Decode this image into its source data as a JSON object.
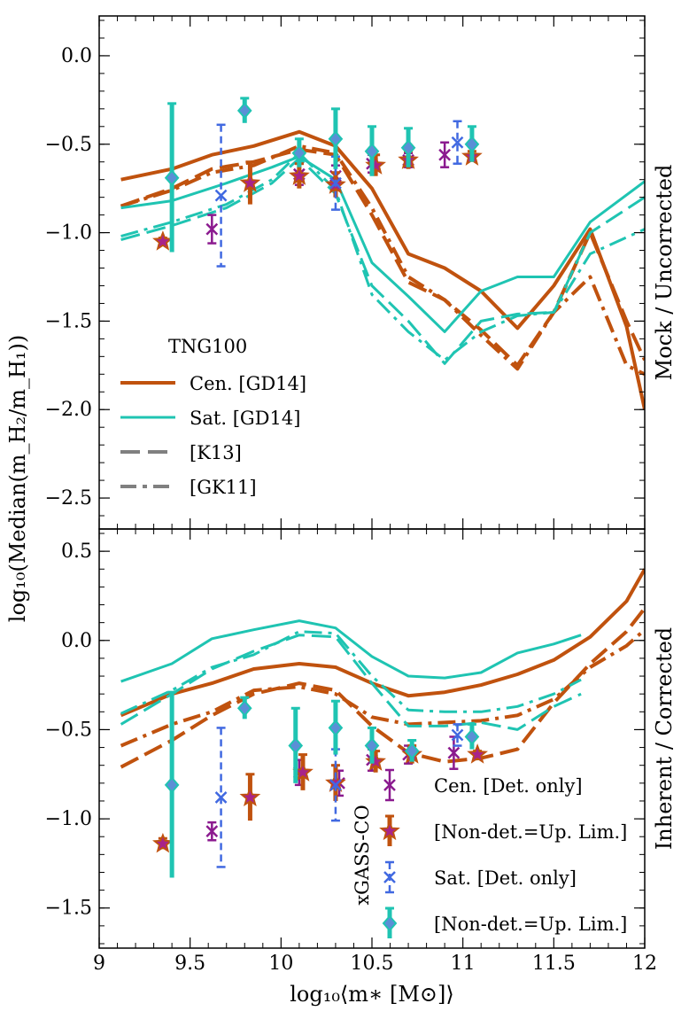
{
  "colors": {
    "cen": "#c0520e",
    "sat": "#1fc4b2",
    "obs_cen": "#8b1a8f",
    "obs_sat": "#4169e1",
    "obs_star_fill": "#a8238a",
    "legend_grey": "#808080"
  },
  "chart_data": {
    "type": "line",
    "x_label": "log₁₀⟨m∗ [M⊙]⟩",
    "y_label": "log₁₀(Median(m_H₂/m_H₁))",
    "xlim": [
      9,
      12
    ],
    "x_ticks": [
      "9",
      "9.5",
      "10",
      "10.5",
      "11",
      "11.5",
      "12"
    ],
    "panels": [
      {
        "label": "Mock / Uncorrected",
        "ylim": [
          -2.65,
          0.2
        ],
        "y_ticks": [
          "0.0",
          "−0.5",
          "−1.0",
          "−1.5",
          "−2.0",
          "−2.5"
        ],
        "y_tick_values": [
          0,
          -0.5,
          -1,
          -1.5,
          -2,
          -2.5
        ],
        "series": [
          {
            "name": "Cen. [GD14]",
            "group": "cen",
            "style": "solid",
            "x": [
              9.12,
              9.4,
              9.62,
              9.85,
              10.1,
              10.3,
              10.5,
              10.7,
              10.9,
              11.1,
              11.3,
              11.5,
              11.7,
              11.9,
              12.0
            ],
            "y": [
              -0.7,
              -0.64,
              -0.56,
              -0.51,
              -0.43,
              -0.51,
              -0.75,
              -1.12,
              -1.2,
              -1.33,
              -1.54,
              -1.3,
              -0.98,
              -1.53,
              -2.0
            ]
          },
          {
            "name": "Cen. [K13]",
            "group": "cen",
            "style": "dashed",
            "x": [
              9.12,
              9.4,
              9.62,
              9.85,
              10.1,
              10.3,
              10.5,
              10.7,
              10.9,
              11.1,
              11.3,
              11.5,
              11.7,
              11.9,
              12.0
            ],
            "y": [
              -0.85,
              -0.75,
              -0.64,
              -0.6,
              -0.53,
              -0.56,
              -0.9,
              -1.28,
              -1.38,
              -1.55,
              -1.75,
              -1.45,
              -1.0,
              -1.5,
              -1.72
            ]
          },
          {
            "name": "Cen. [GK11]",
            "group": "cen",
            "style": "dashdot",
            "x": [
              9.12,
              9.4,
              9.62,
              9.85,
              10.1,
              10.3,
              10.5,
              10.7,
              10.9,
              11.1,
              11.3,
              11.5,
              11.7,
              11.9,
              12.0
            ],
            "y": [
              -0.85,
              -0.76,
              -0.66,
              -0.62,
              -0.51,
              -0.55,
              -0.86,
              -1.25,
              -1.38,
              -1.58,
              -1.77,
              -1.45,
              -1.25,
              -1.75,
              -1.8
            ]
          },
          {
            "name": "Sat. [GD14]",
            "group": "sat",
            "style": "solid",
            "x": [
              9.12,
              9.4,
              9.7,
              9.95,
              10.1,
              10.3,
              10.5,
              10.7,
              10.9,
              11.1,
              11.3,
              11.5,
              11.7,
              12.0
            ],
            "y": [
              -0.86,
              -0.82,
              -0.72,
              -0.63,
              -0.57,
              -0.7,
              -1.17,
              -1.36,
              -1.56,
              -1.33,
              -1.25,
              -1.25,
              -0.94,
              -0.71
            ]
          },
          {
            "name": "Sat. [K13]",
            "group": "sat",
            "style": "dashed",
            "x": [
              9.12,
              9.4,
              9.7,
              9.95,
              10.1,
              10.3,
              10.5,
              10.7,
              10.9,
              11.1,
              11.3,
              11.5,
              11.7,
              12.0
            ],
            "y": [
              -1.04,
              -0.96,
              -0.86,
              -0.72,
              -0.58,
              -0.78,
              -1.3,
              -1.5,
              -1.74,
              -1.5,
              -1.46,
              -1.45,
              -1.0,
              -0.8
            ]
          },
          {
            "name": "Sat. [GK11]",
            "group": "sat",
            "style": "dashdot",
            "x": [
              9.12,
              9.4,
              9.7,
              9.95,
              10.1,
              10.3,
              10.5,
              10.7,
              10.9,
              11.1,
              11.3,
              11.5,
              11.7,
              12.0
            ],
            "y": [
              -1.02,
              -0.94,
              -0.84,
              -0.7,
              -0.55,
              -0.76,
              -1.35,
              -1.56,
              -1.72,
              -1.56,
              -1.47,
              -1.45,
              -1.12,
              -0.98
            ]
          }
        ],
        "observations": [
          {
            "group": "cen_det",
            "marker": "x",
            "x": [
              9.62,
              10.1,
              10.3,
              10.5,
              10.7,
              10.9
            ],
            "y": [
              -0.98,
              -0.67,
              -0.68,
              -0.61,
              -0.59,
              -0.56
            ],
            "yerr": [
              0.08,
              0.06,
              0.06,
              0.05,
              0.04,
              0.07
            ]
          },
          {
            "group": "cen_nondet",
            "marker": "star",
            "x": [
              9.35,
              9.83,
              10.1,
              10.3,
              10.52,
              10.7,
              11.05
            ],
            "y": [
              -1.05,
              -0.72,
              -0.68,
              -0.73,
              -0.62,
              -0.59,
              -0.57
            ],
            "yerr": [
              0.02,
              0.12,
              0.07,
              0.07,
              0.06,
              0.05,
              0.03
            ]
          },
          {
            "group": "sat_det",
            "marker": "x",
            "x": [
              9.67,
              10.3,
              10.97
            ],
            "y": [
              -0.79,
              -0.72,
              -0.49
            ],
            "yerr": [
              0.4,
              0.15,
              0.12
            ]
          },
          {
            "group": "sat_nondet",
            "marker": "diamond",
            "x": [
              9.4,
              9.8,
              10.1,
              10.3,
              10.5,
              10.7,
              11.05
            ],
            "y": [
              -0.69,
              -0.31,
              -0.55,
              -0.47,
              -0.54,
              -0.52,
              -0.5
            ],
            "yerr": [
              0.42,
              0.07,
              0.08,
              0.17,
              0.14,
              0.11,
              0.1
            ]
          }
        ]
      },
      {
        "label": "Inherent / Corrected",
        "ylim": [
          -1.7,
          0.6
        ],
        "y_ticks": [
          "0.5",
          "0.0",
          "−0.5",
          "−1.0",
          "−1.5"
        ],
        "y_tick_values": [
          0.5,
          0,
          -0.5,
          -1,
          -1.5
        ],
        "series": [
          {
            "name": "Cen. [GD14]",
            "group": "cen",
            "style": "solid",
            "x": [
              9.12,
              9.4,
              9.62,
              9.85,
              10.1,
              10.3,
              10.5,
              10.7,
              10.9,
              11.1,
              11.3,
              11.5,
              11.7,
              11.9,
              12.0
            ],
            "y": [
              -0.42,
              -0.3,
              -0.24,
              -0.16,
              -0.13,
              -0.15,
              -0.24,
              -0.31,
              -0.29,
              -0.25,
              -0.19,
              -0.11,
              0.02,
              0.22,
              0.4
            ]
          },
          {
            "name": "Cen. [K13]",
            "group": "cen",
            "style": "dashed",
            "x": [
              9.12,
              9.4,
              9.62,
              9.85,
              10.1,
              10.3,
              10.5,
              10.7,
              10.9,
              11.1,
              11.3,
              11.5,
              11.7,
              11.9,
              12.0
            ],
            "y": [
              -0.71,
              -0.56,
              -0.42,
              -0.3,
              -0.24,
              -0.28,
              -0.48,
              -0.63,
              -0.68,
              -0.66,
              -0.61,
              -0.35,
              -0.13,
              0.05,
              0.18
            ]
          },
          {
            "name": "Cen. [GK11]",
            "group": "cen",
            "style": "dashdot",
            "x": [
              9.12,
              9.4,
              9.62,
              9.85,
              10.1,
              10.3,
              10.5,
              10.7,
              10.9,
              11.1,
              11.3,
              11.5,
              11.7,
              11.9,
              12.0
            ],
            "y": [
              -0.59,
              -0.47,
              -0.4,
              -0.28,
              -0.26,
              -0.3,
              -0.43,
              -0.47,
              -0.46,
              -0.45,
              -0.42,
              -0.33,
              -0.15,
              -0.03,
              0.06
            ]
          },
          {
            "name": "Sat. [GD14]",
            "group": "sat",
            "style": "solid",
            "x": [
              9.12,
              9.4,
              9.62,
              9.85,
              10.1,
              10.3,
              10.5,
              10.7,
              10.9,
              11.1,
              11.3,
              11.5,
              11.65
            ],
            "y": [
              -0.23,
              -0.13,
              0.01,
              0.06,
              0.11,
              0.07,
              -0.09,
              -0.2,
              -0.21,
              -0.18,
              -0.07,
              -0.02,
              0.03
            ]
          },
          {
            "name": "Sat. [K13]",
            "group": "sat",
            "style": "dashed",
            "x": [
              9.12,
              9.4,
              9.62,
              9.85,
              10.1,
              10.3,
              10.5,
              10.7,
              10.9,
              11.1,
              11.3,
              11.5,
              11.65
            ],
            "y": [
              -0.47,
              -0.3,
              -0.16,
              -0.06,
              0.03,
              0.02,
              -0.24,
              -0.48,
              -0.48,
              -0.46,
              -0.5,
              -0.37,
              -0.3
            ]
          },
          {
            "name": "Sat. [GK11]",
            "group": "sat",
            "style": "dashdot",
            "x": [
              9.12,
              9.4,
              9.62,
              9.85,
              10.1,
              10.3,
              10.5,
              10.7,
              10.9,
              11.1,
              11.3,
              11.5,
              11.65
            ],
            "y": [
              -0.41,
              -0.28,
              -0.15,
              -0.08,
              0.05,
              0.04,
              -0.2,
              -0.39,
              -0.4,
              -0.4,
              -0.37,
              -0.3,
              -0.22
            ]
          }
        ],
        "observations": [
          {
            "group": "cen_det",
            "marker": "x",
            "x": [
              9.62,
              10.1,
              10.32,
              10.5,
              10.7,
              10.95
            ],
            "y": [
              -1.07,
              -0.74,
              -0.8,
              -0.67,
              -0.64,
              -0.63
            ],
            "yerr": [
              0.05,
              0.07,
              0.07,
              0.06,
              0.05,
              0.09
            ]
          },
          {
            "group": "cen_nondet",
            "marker": "star",
            "x": [
              9.35,
              9.83,
              10.12,
              10.3,
              10.52,
              10.72,
              11.08
            ],
            "y": [
              -1.14,
              -0.88,
              -0.74,
              -0.8,
              -0.68,
              -0.64,
              -0.64
            ],
            "yerr": [
              0.03,
              0.13,
              0.1,
              0.1,
              0.06,
              0.05,
              0.02
            ]
          },
          {
            "group": "sat_det",
            "marker": "x",
            "x": [
              9.67,
              10.3,
              10.97
            ],
            "y": [
              -0.88,
              -0.81,
              -0.53
            ],
            "yerr": [
              0.39,
              0.2,
              0.06
            ]
          },
          {
            "group": "sat_nondet",
            "marker": "diamond",
            "x": [
              9.4,
              9.8,
              10.08,
              10.3,
              10.5,
              10.72,
              11.05
            ],
            "y": [
              -0.81,
              -0.38,
              -0.59,
              -0.49,
              -0.59,
              -0.62,
              -0.54
            ],
            "yerr": [
              0.52,
              0.06,
              0.21,
              0.15,
              0.1,
              0.06,
              0.07
            ]
          }
        ]
      }
    ]
  },
  "legend_model": {
    "title": "TNG100",
    "items": [
      {
        "label": "Cen. [GD14]",
        "group": "cen",
        "style": "solid"
      },
      {
        "label": "Sat. [GD14]",
        "group": "sat",
        "style": "solid"
      },
      {
        "label": "[K13]",
        "group": "grey",
        "style": "dashed"
      },
      {
        "label": "[GK11]",
        "group": "grey",
        "style": "dashdot"
      }
    ]
  },
  "legend_obs": {
    "title": "xGASS-CO",
    "items": [
      {
        "label": "Cen. [Det. only]",
        "group": "cen_det"
      },
      {
        "label": "[Non-det.=Up. Lim.]",
        "group": "cen_nondet"
      },
      {
        "label": "Sat. [Det. only]",
        "group": "sat_det"
      },
      {
        "label": "[Non-det.=Up. Lim.]",
        "group": "sat_nondet"
      }
    ]
  }
}
